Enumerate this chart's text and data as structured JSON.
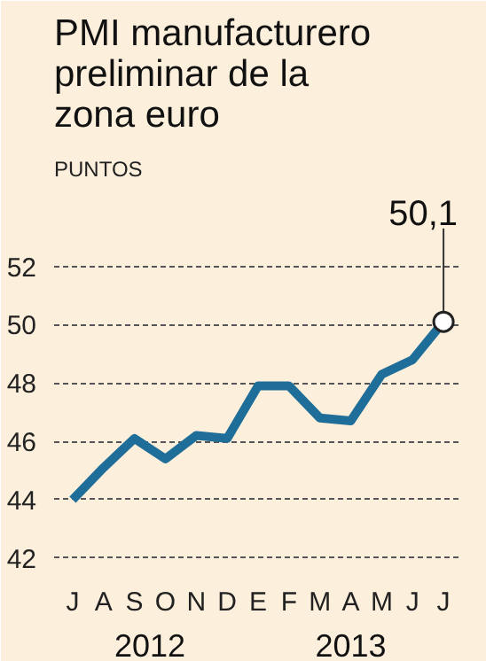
{
  "chart_data": {
    "type": "line",
    "title": "PMI manufacturero preliminar de la zona euro",
    "ylabel": "PUNTOS",
    "categories": [
      "J",
      "A",
      "S",
      "O",
      "N",
      "D",
      "E",
      "F",
      "M",
      "A",
      "M",
      "J",
      "J"
    ],
    "series": [
      {
        "color": "#1f6e99",
        "values": [
          44.0,
          45.1,
          46.1,
          45.4,
          46.2,
          46.1,
          47.9,
          47.9,
          46.8,
          46.7,
          48.3,
          48.8,
          50.1
        ],
        "value_labels": [
          null,
          null,
          null,
          null,
          null,
          null,
          null,
          null,
          null,
          null,
          null,
          null,
          "50,1"
        ]
      }
    ],
    "annotations": [
      "2012",
      "2013"
    ],
    "ylim": [
      41.6,
      54.6
    ],
    "yticks": [
      42,
      44,
      46,
      48,
      50,
      52
    ],
    "grid": "y",
    "line_style": "solid"
  }
}
